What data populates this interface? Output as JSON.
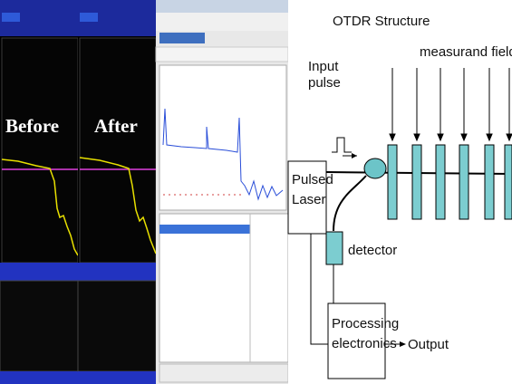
{
  "left_panels": {
    "before_label": "Before",
    "after_label": "After"
  },
  "diagram": {
    "title": "OTDR Structure",
    "input_pulse": "Input pulse",
    "measurand_field": "measurand field",
    "laser": "Pulsed Laser",
    "detector": "detector",
    "processing": "Processing electronics",
    "output": "Output"
  }
}
